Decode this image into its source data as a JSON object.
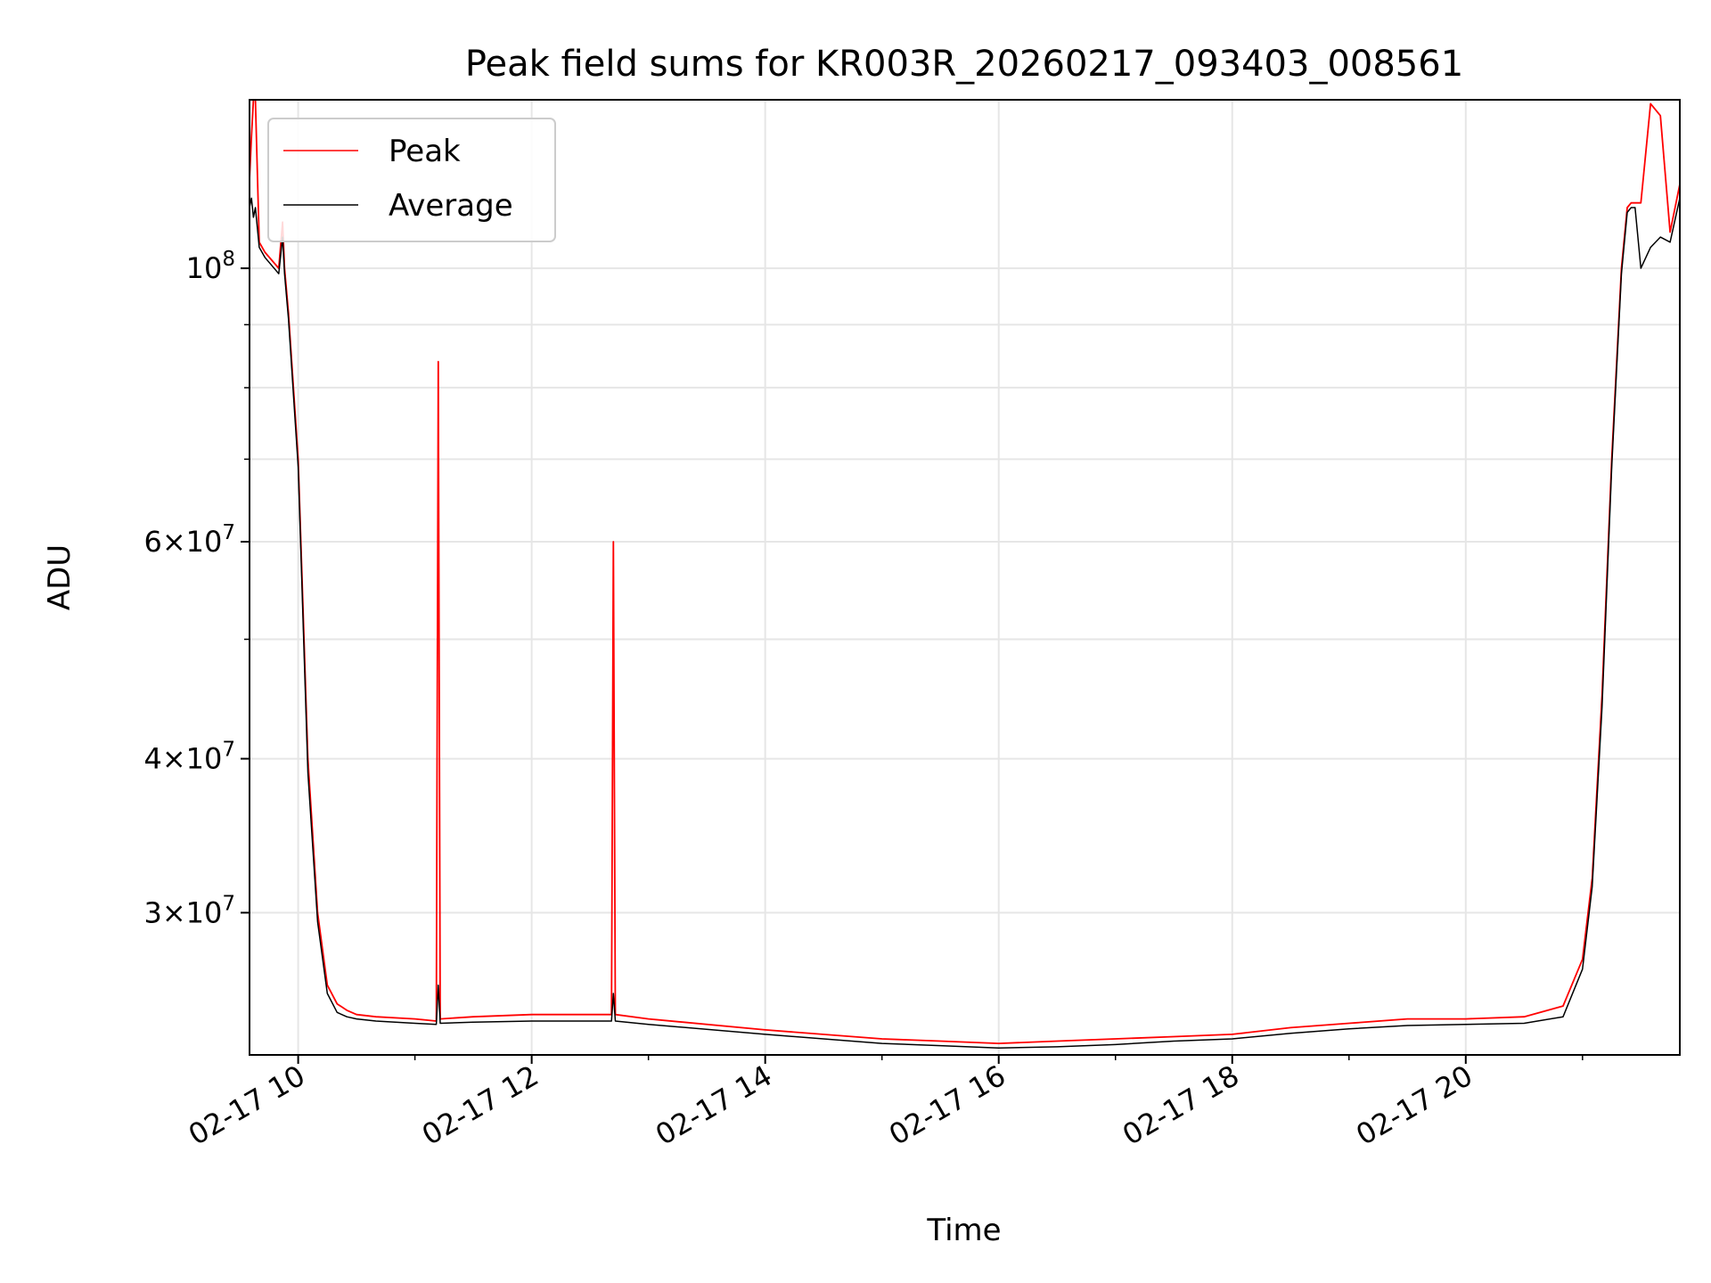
{
  "chart_data": {
    "type": "line",
    "title": "Peak field sums for KR003R_20260217_093403_008561",
    "xlabel": "Time",
    "ylabel": "ADU",
    "yscale": "log",
    "grid": true,
    "legend_position": "top-left",
    "xlim": [
      "02-17 09:35",
      "02-17 21:50"
    ],
    "ylim": [
      23000000,
      137000000
    ],
    "x_ticks": [
      {
        "time": "02-17 10:00",
        "label": "02-17 10"
      },
      {
        "time": "02-17 12:00",
        "label": "02-17 12"
      },
      {
        "time": "02-17 14:00",
        "label": "02-17 14"
      },
      {
        "time": "02-17 16:00",
        "label": "02-17 16"
      },
      {
        "time": "02-17 18:00",
        "label": "02-17 18"
      },
      {
        "time": "02-17 20:00",
        "label": "02-17 20"
      }
    ],
    "y_ticks": [
      {
        "value": 30000000,
        "base": "3",
        "exp": "7"
      },
      {
        "value": 40000000,
        "base": "4",
        "exp": "7"
      },
      {
        "value": 60000000,
        "base": "6",
        "exp": "7"
      },
      {
        "value": 100000000,
        "base": "",
        "exp": "8"
      }
    ],
    "y_minor_ticks": [
      50000000,
      70000000,
      80000000,
      90000000
    ],
    "colors": {
      "peak": "#ff0000",
      "average": "#000000",
      "grid": "#e6e6e6"
    },
    "series": [
      {
        "name": "Peak",
        "color": "#ff0000",
        "x": [
          "02-17 09:35",
          "02-17 09:36",
          "02-17 09:37",
          "02-17 09:38",
          "02-17 09:40",
          "02-17 09:43",
          "02-17 09:50",
          "02-17 09:52",
          "02-17 09:53",
          "02-17 09:55",
          "02-17 10:00",
          "02-17 10:05",
          "02-17 10:10",
          "02-17 10:15",
          "02-17 10:20",
          "02-17 10:25",
          "02-17 10:30",
          "02-17 10:40",
          "02-17 11:00",
          "02-17 11:11",
          "02-17 11:12",
          "02-17 11:13",
          "02-17 11:30",
          "02-17 12:00",
          "02-17 12:41",
          "02-17 12:42",
          "02-17 12:43",
          "02-17 13:00",
          "02-17 14:00",
          "02-17 15:00",
          "02-17 15:30",
          "02-17 16:00",
          "02-17 16:30",
          "02-17 17:00",
          "02-17 17:30",
          "02-17 18:00",
          "02-17 18:30",
          "02-17 19:00",
          "02-17 19:30",
          "02-17 20:00",
          "02-17 20:30",
          "02-17 20:50",
          "02-17 21:00",
          "02-17 21:05",
          "02-17 21:10",
          "02-17 21:15",
          "02-17 21:20",
          "02-17 21:23",
          "02-17 21:25",
          "02-17 21:27",
          "02-17 21:30",
          "02-17 21:35",
          "02-17 21:40",
          "02-17 21:45",
          "02-17 21:50"
        ],
        "y": [
          118000000,
          128000000,
          137000000,
          137000000,
          105000000,
          103000000,
          100000000,
          109000000,
          100000000,
          92000000,
          70000000,
          40000000,
          30000000,
          26200000,
          25300000,
          25000000,
          24800000,
          24700000,
          24600000,
          24500000,
          84000000,
          24600000,
          24700000,
          24800000,
          24800000,
          60000000,
          24800000,
          24600000,
          24100000,
          23700000,
          23600000,
          23500000,
          23600000,
          23700000,
          23800000,
          23900000,
          24200000,
          24400000,
          24600000,
          24600000,
          24700000,
          25200000,
          27500000,
          32000000,
          45000000,
          70000000,
          100000000,
          112000000,
          113000000,
          113000000,
          113000000,
          136000000,
          133000000,
          107000000,
          117000000
        ]
      },
      {
        "name": "Average",
        "color": "#000000",
        "x": [
          "02-17 09:35",
          "02-17 09:36",
          "02-17 09:37",
          "02-17 09:38",
          "02-17 09:40",
          "02-17 09:43",
          "02-17 09:50",
          "02-17 09:52",
          "02-17 09:53",
          "02-17 09:55",
          "02-17 10:00",
          "02-17 10:05",
          "02-17 10:10",
          "02-17 10:15",
          "02-17 10:20",
          "02-17 10:25",
          "02-17 10:30",
          "02-17 10:40",
          "02-17 11:00",
          "02-17 11:11",
          "02-17 11:12",
          "02-17 11:13",
          "02-17 11:30",
          "02-17 12:00",
          "02-17 12:41",
          "02-17 12:42",
          "02-17 12:43",
          "02-17 13:00",
          "02-17 14:00",
          "02-17 15:00",
          "02-17 15:30",
          "02-17 16:00",
          "02-17 16:30",
          "02-17 17:00",
          "02-17 17:30",
          "02-17 18:00",
          "02-17 18:30",
          "02-17 19:00",
          "02-17 19:30",
          "02-17 20:00",
          "02-17 20:30",
          "02-17 20:50",
          "02-17 21:00",
          "02-17 21:05",
          "02-17 21:10",
          "02-17 21:15",
          "02-17 21:20",
          "02-17 21:23",
          "02-17 21:25",
          "02-17 21:27",
          "02-17 21:30",
          "02-17 21:35",
          "02-17 21:40",
          "02-17 21:45",
          "02-17 21:50"
        ],
        "y": [
          112000000,
          114000000,
          110000000,
          112000000,
          104000000,
          102000000,
          99000000,
          106000000,
          99000000,
          91000000,
          69000000,
          39000000,
          29500000,
          25800000,
          24900000,
          24700000,
          24600000,
          24500000,
          24400000,
          24350000,
          26200000,
          24400000,
          24450000,
          24500000,
          24500000,
          25800000,
          24500000,
          24350000,
          23900000,
          23500000,
          23400000,
          23300000,
          23350000,
          23450000,
          23600000,
          23700000,
          23950000,
          24150000,
          24300000,
          24350000,
          24400000,
          24700000,
          27000000,
          31500000,
          44000000,
          69000000,
          99000000,
          111000000,
          112000000,
          112000000,
          100000000,
          104000000,
          106000000,
          105000000,
          114000000
        ]
      }
    ]
  }
}
